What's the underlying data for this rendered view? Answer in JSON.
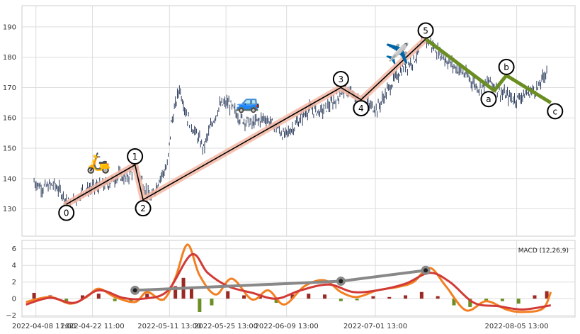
{
  "chart_data": [
    {
      "type": "line",
      "subtype": "ohlc-candlestick",
      "title": "",
      "xlabel": "",
      "ylabel": "",
      "ylim": [
        121,
        197
      ],
      "xlim": [
        "2022-04-05",
        "2022-08-20"
      ],
      "yticks": [
        "130",
        "140",
        "150",
        "160",
        "170",
        "180",
        "190"
      ],
      "grid": true,
      "price_path": [
        [
          "2022-04-08",
          139
        ],
        [
          "2022-04-10",
          137
        ],
        [
          "2022-04-13",
          138
        ],
        [
          "2022-04-15",
          135
        ],
        [
          "2022-04-17",
          131
        ],
        [
          "2022-04-20",
          136
        ],
        [
          "2022-04-23",
          137
        ],
        [
          "2022-04-26",
          138
        ],
        [
          "2022-04-29",
          141
        ],
        [
          "2022-05-01",
          140
        ],
        [
          "2022-05-03",
          144
        ],
        [
          "2022-05-04",
          142
        ],
        [
          "2022-05-06",
          135
        ],
        [
          "2022-05-07",
          133
        ],
        [
          "2022-05-09",
          140
        ],
        [
          "2022-05-11",
          144
        ],
        [
          "2022-05-12",
          158
        ],
        [
          "2022-05-14",
          170
        ],
        [
          "2022-05-16",
          160
        ],
        [
          "2022-05-18",
          155
        ],
        [
          "2022-05-20",
          150
        ],
        [
          "2022-05-22",
          158
        ],
        [
          "2022-05-24",
          164
        ],
        [
          "2022-05-26",
          165
        ],
        [
          "2022-05-29",
          160
        ],
        [
          "2022-06-01",
          158
        ],
        [
          "2022-06-04",
          160
        ],
        [
          "2022-06-07",
          157
        ],
        [
          "2022-06-09",
          154
        ],
        [
          "2022-06-12",
          158
        ],
        [
          "2022-06-15",
          163
        ],
        [
          "2022-06-18",
          162
        ],
        [
          "2022-06-21",
          165
        ],
        [
          "2022-06-24",
          170
        ],
        [
          "2022-06-27",
          166
        ],
        [
          "2022-06-30",
          164
        ],
        [
          "2022-07-02",
          163
        ],
        [
          "2022-07-05",
          170
        ],
        [
          "2022-07-08",
          176
        ],
        [
          "2022-07-11",
          179
        ],
        [
          "2022-07-14",
          186
        ],
        [
          "2022-07-17",
          182
        ],
        [
          "2022-07-20",
          178
        ],
        [
          "2022-07-24",
          174
        ],
        [
          "2022-07-27",
          170
        ],
        [
          "2022-07-30",
          172
        ],
        [
          "2022-08-02",
          168
        ],
        [
          "2022-08-05",
          166
        ],
        [
          "2022-08-08",
          168
        ],
        [
          "2022-08-11",
          170
        ],
        [
          "2022-08-13",
          176
        ]
      ],
      "impulse_wave": [
        {
          "label": "0",
          "x": "2022-04-16",
          "y": 131.5
        },
        {
          "label": "1",
          "x": "2022-05-03",
          "y": 144.5
        },
        {
          "label": "2",
          "x": "2022-05-05",
          "y": 133
        },
        {
          "label": "3",
          "x": "2022-06-23",
          "y": 170
        },
        {
          "label": "4",
          "x": "2022-06-28",
          "y": 166
        },
        {
          "label": "5",
          "x": "2022-07-14",
          "y": 186
        }
      ],
      "corrective_wave": [
        {
          "label": "5",
          "x": "2022-07-14",
          "y": 186
        },
        {
          "label": "a",
          "x": "2022-07-31",
          "y": 169
        },
        {
          "label": "b",
          "x": "2022-08-03",
          "y": 174
        },
        {
          "label": "c",
          "x": "2022-08-14",
          "y": 165
        }
      ],
      "annotations": [
        {
          "icon": "scooter-icon",
          "glyph": "🛵",
          "x": "2022-04-24",
          "y": 143
        },
        {
          "icon": "car-icon",
          "glyph": "🚙",
          "x": "2022-05-31",
          "y": 163
        },
        {
          "icon": "airplane-icon",
          "glyph": "✈️",
          "x": "2022-07-07",
          "y": 179
        }
      ],
      "colors": {
        "impulse_band": "#f4b8a6",
        "impulse_line": "#000000",
        "corrective": "#6b8e23",
        "candles": "#2f3f5f"
      }
    },
    {
      "type": "line",
      "title": "",
      "legend_text": "MACD (12,26,9)",
      "ylim": [
        -2.2,
        7
      ],
      "yticks": [
        "−2",
        "0",
        "2",
        "4",
        "6"
      ],
      "xticks": [
        "2022-04-08 11:00",
        "2022-04-22 11:00",
        "2022-05-11 13:00",
        "2022-05-25 13:00",
        "2022-06-09 13:00",
        "2022-07-01 13:00",
        "2022-08-05 13:00"
      ],
      "grid": true,
      "macd_line": [
        [
          "2022-04-06",
          -0.4
        ],
        [
          "2022-04-12",
          0.2
        ],
        [
          "2022-04-17",
          -0.6
        ],
        [
          "2022-04-21",
          0.2
        ],
        [
          "2022-04-24",
          1.2
        ],
        [
          "2022-04-28",
          0.2
        ],
        [
          "2022-05-03",
          -0.4
        ],
        [
          "2022-05-06",
          0.8
        ],
        [
          "2022-05-10",
          -0.1
        ],
        [
          "2022-05-13",
          2.5
        ],
        [
          "2022-05-16",
          6.5
        ],
        [
          "2022-05-19",
          2.8
        ],
        [
          "2022-05-23",
          0.5
        ],
        [
          "2022-05-27",
          2.4
        ],
        [
          "2022-06-01",
          -0.1
        ],
        [
          "2022-06-05",
          1.0
        ],
        [
          "2022-06-09",
          -0.7
        ],
        [
          "2022-06-14",
          1.5
        ],
        [
          "2022-06-19",
          2.2
        ],
        [
          "2022-06-23",
          0.8
        ],
        [
          "2022-06-27",
          0.2
        ],
        [
          "2022-07-02",
          1.0
        ],
        [
          "2022-07-07",
          1.4
        ],
        [
          "2022-07-11",
          2.0
        ],
        [
          "2022-07-15",
          3.7
        ],
        [
          "2022-07-19",
          1.5
        ],
        [
          "2022-07-24",
          -1.4
        ],
        [
          "2022-07-29",
          -0.3
        ],
        [
          "2022-08-03",
          -1.3
        ],
        [
          "2022-08-07",
          -1.6
        ],
        [
          "2022-08-12",
          -1.2
        ],
        [
          "2022-08-14",
          0.8
        ]
      ],
      "signal_line": [
        [
          "2022-04-06",
          -0.7
        ],
        [
          "2022-04-12",
          0.1
        ],
        [
          "2022-04-18",
          -0.5
        ],
        [
          "2022-04-24",
          1.0
        ],
        [
          "2022-04-30",
          0.1
        ],
        [
          "2022-05-05",
          0.0
        ],
        [
          "2022-05-11",
          0.9
        ],
        [
          "2022-05-17",
          5.3
        ],
        [
          "2022-05-21",
          3.1
        ],
        [
          "2022-05-26",
          1.5
        ],
        [
          "2022-06-01",
          0.7
        ],
        [
          "2022-06-07",
          0.0
        ],
        [
          "2022-06-13",
          1.0
        ],
        [
          "2022-06-20",
          1.7
        ],
        [
          "2022-06-26",
          0.8
        ],
        [
          "2022-07-02",
          1.0
        ],
        [
          "2022-07-09",
          1.8
        ],
        [
          "2022-07-15",
          3.1
        ],
        [
          "2022-07-20",
          2.0
        ],
        [
          "2022-07-26",
          -0.5
        ],
        [
          "2022-08-01",
          -0.9
        ],
        [
          "2022-08-07",
          -1.3
        ],
        [
          "2022-08-14",
          -0.8
        ]
      ],
      "histogram": [
        [
          "2022-04-08",
          0.7
        ],
        [
          "2022-04-12",
          0.4
        ],
        [
          "2022-04-16",
          -0.3
        ],
        [
          "2022-04-20",
          0.4
        ],
        [
          "2022-04-24",
          0.6
        ],
        [
          "2022-04-28",
          -0.3
        ],
        [
          "2022-05-02",
          -0.4
        ],
        [
          "2022-05-06",
          0.6
        ],
        [
          "2022-05-10",
          -0.2
        ],
        [
          "2022-05-13",
          1.5
        ],
        [
          "2022-05-15",
          2.5
        ],
        [
          "2022-05-17",
          1.4
        ],
        [
          "2022-05-19",
          -1.6
        ],
        [
          "2022-05-22",
          -0.8
        ],
        [
          "2022-05-26",
          0.9
        ],
        [
          "2022-05-30",
          0.4
        ],
        [
          "2022-06-03",
          0.3
        ],
        [
          "2022-06-07",
          -0.5
        ],
        [
          "2022-06-11",
          0.5
        ],
        [
          "2022-06-15",
          0.6
        ],
        [
          "2022-06-19",
          0.5
        ],
        [
          "2022-06-23",
          -0.3
        ],
        [
          "2022-06-27",
          -0.2
        ],
        [
          "2022-07-01",
          0.3
        ],
        [
          "2022-07-05",
          0.2
        ],
        [
          "2022-07-09",
          0.4
        ],
        [
          "2022-07-13",
          0.8
        ],
        [
          "2022-07-17",
          0.3
        ],
        [
          "2022-07-21",
          -0.8
        ],
        [
          "2022-07-25",
          -1.0
        ],
        [
          "2022-07-29",
          -0.4
        ],
        [
          "2022-08-02",
          -0.3
        ],
        [
          "2022-08-06",
          -0.6
        ],
        [
          "2022-08-10",
          0.4
        ],
        [
          "2022-08-13",
          0.9
        ]
      ],
      "divergence_points": [
        {
          "x": "2022-05-03",
          "y": 1.0
        },
        {
          "x": "2022-06-23",
          "y": 2.1
        },
        {
          "x": "2022-07-14",
          "y": 3.4
        }
      ],
      "colors": {
        "macd": "#f28022",
        "signal": "#d13a36",
        "hist_pos": "#9a2a24",
        "hist_neg": "#6b8e23",
        "divergence": "#888888"
      }
    }
  ]
}
